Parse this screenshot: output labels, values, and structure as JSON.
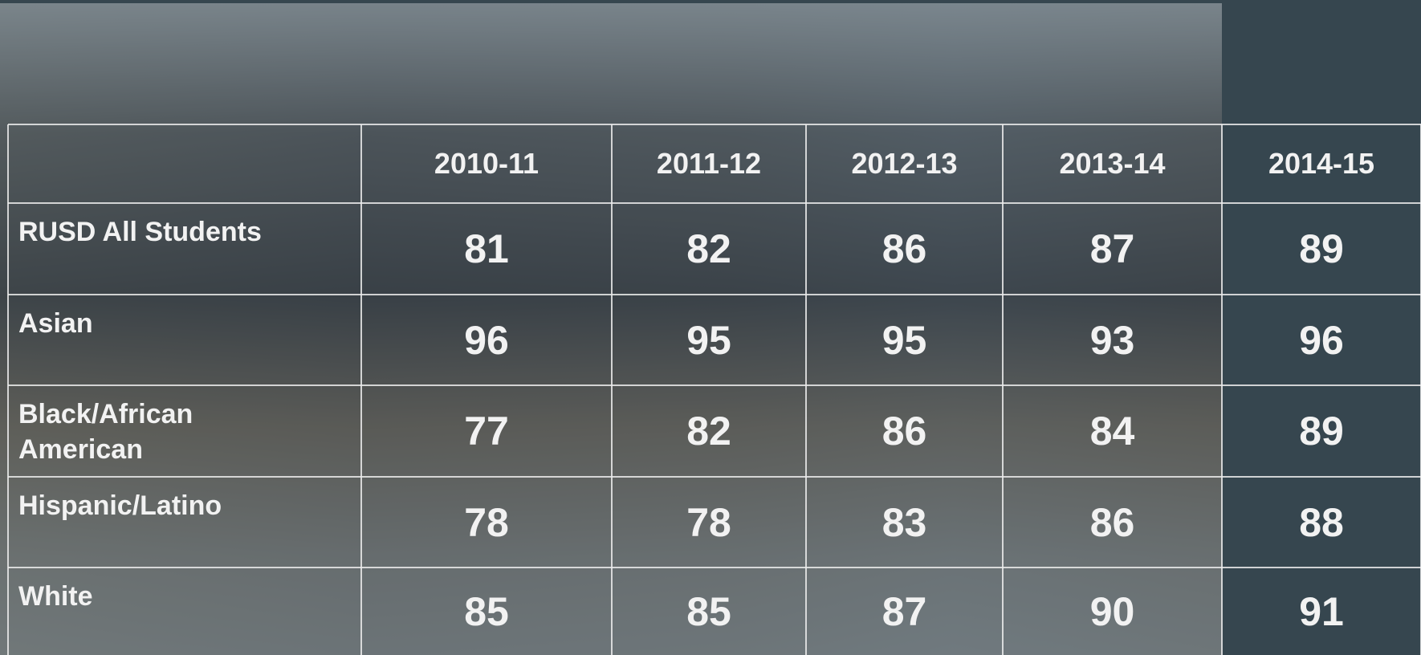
{
  "table": {
    "header": [
      "2010-11",
      "2011-12",
      "2012-13",
      "2013-14",
      "2014-15"
    ],
    "rows": [
      {
        "label": "RUSD All Students",
        "values": [
          81,
          82,
          86,
          87,
          89
        ]
      },
      {
        "label": "Asian",
        "values": [
          96,
          95,
          95,
          93,
          96
        ]
      },
      {
        "label": "Black/African American",
        "values": [
          77,
          82,
          86,
          84,
          89
        ]
      },
      {
        "label": "Hispanic/Latino",
        "values": [
          78,
          78,
          83,
          86,
          88
        ]
      },
      {
        "label": "White",
        "values": [
          85,
          85,
          87,
          90,
          91
        ]
      }
    ]
  }
}
